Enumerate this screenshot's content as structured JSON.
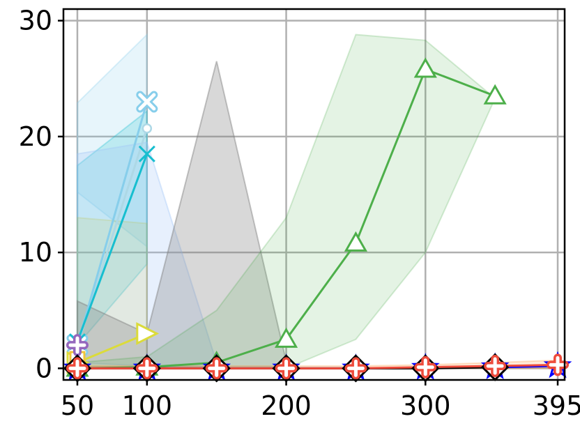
{
  "chart_data": {
    "type": "line",
    "title": "",
    "xlabel": "",
    "ylabel": "",
    "xlim": [
      40,
      400
    ],
    "ylim": [
      -1,
      31
    ],
    "grid": true,
    "legend": "none",
    "x_ticks": [
      50,
      100,
      200,
      300,
      395
    ],
    "y_ticks": [
      0,
      10,
      20,
      30
    ],
    "x_tick_labels": [
      "50",
      "100",
      "200",
      "300",
      "395"
    ],
    "y_tick_labels": [
      "0",
      "10",
      "20",
      "30"
    ],
    "bands": [
      {
        "color": "#87ceeb",
        "opacity": 0.2,
        "upper": [
          [
            50,
            22.9
          ],
          [
            100,
            28.8
          ]
        ],
        "lower": [
          [
            50,
            15.2
          ],
          [
            100,
            10.5
          ]
        ]
      },
      {
        "color": "#17becf",
        "opacity": 0.2,
        "upper": [
          [
            50,
            17.5
          ],
          [
            100,
            22.2
          ]
        ],
        "lower": [
          [
            50,
            2.0
          ],
          [
            100,
            9.0
          ]
        ]
      },
      {
        "color": "#9fc5f8",
        "opacity": 0.25,
        "upper": [
          [
            50,
            18.5
          ],
          [
            100,
            19.5
          ],
          [
            150,
            0.5
          ]
        ],
        "lower": [
          [
            50,
            0.5
          ],
          [
            100,
            0.2
          ],
          [
            150,
            0.0
          ]
        ]
      },
      {
        "color": "#bcbd22",
        "opacity": 0.12,
        "upper": [
          [
            50,
            13.0
          ],
          [
            100,
            12.5
          ]
        ],
        "lower": [
          [
            50,
            0.0
          ],
          [
            100,
            0.0
          ]
        ]
      },
      {
        "color": "#7f7f7f",
        "opacity": 0.3,
        "upper": [
          [
            50,
            5.8
          ],
          [
            100,
            3.0
          ],
          [
            150,
            26.5
          ],
          [
            200,
            0.6
          ]
        ],
        "lower": [
          [
            50,
            0.0
          ],
          [
            100,
            0.0
          ],
          [
            150,
            0.0
          ],
          [
            200,
            0.0
          ]
        ]
      },
      {
        "color": "#2ca02c",
        "opacity": 0.13,
        "upper": [
          [
            50,
            0.5
          ],
          [
            100,
            1.0
          ],
          [
            150,
            5.0
          ],
          [
            200,
            13.0
          ],
          [
            250,
            28.8
          ],
          [
            300,
            28.3
          ],
          [
            350,
            23.3
          ]
        ],
        "lower": [
          [
            50,
            0.0
          ],
          [
            100,
            0.0
          ],
          [
            150,
            0.0
          ],
          [
            200,
            0.0
          ],
          [
            250,
            2.5
          ],
          [
            300,
            10.0
          ],
          [
            350,
            23.3
          ]
        ]
      },
      {
        "color": "#ff7f0e",
        "opacity": 0.15,
        "upper": [
          [
            50,
            0.2
          ],
          [
            100,
            0.2
          ],
          [
            150,
            0.2
          ],
          [
            200,
            0.2
          ],
          [
            250,
            0.2
          ],
          [
            300,
            0.3
          ],
          [
            350,
            0.5
          ],
          [
            395,
            0.7
          ]
        ],
        "lower": [
          [
            50,
            0.0
          ],
          [
            100,
            0.0
          ],
          [
            150,
            0.0
          ],
          [
            200,
            0.0
          ],
          [
            250,
            0.0
          ],
          [
            300,
            0.0
          ],
          [
            350,
            0.0
          ],
          [
            395,
            0.0
          ]
        ]
      }
    ],
    "series": [
      {
        "color": "#add8e6",
        "marker": "circle-small",
        "x": [
          50,
          100
        ],
        "y": [
          2.0,
          20.7
        ]
      },
      {
        "color": "#87ceeb",
        "marker": "x-thick",
        "x": [
          50,
          100
        ],
        "y": [
          2.0,
          23.0
        ]
      },
      {
        "color": "#17becf",
        "marker": "x",
        "x": [
          50,
          100
        ],
        "y": [
          2.3,
          18.5
        ]
      },
      {
        "color": "#dbdb3a",
        "marker": "triangle-right",
        "x": [
          50,
          100
        ],
        "y": [
          0.5,
          3.0
        ]
      },
      {
        "color": "#f0c43a",
        "marker": "square",
        "x": [
          50
        ],
        "y": [
          0.8
        ]
      },
      {
        "color": "#9467bd",
        "marker": "plus-thick",
        "x": [
          50
        ],
        "y": [
          2.0
        ]
      },
      {
        "color": "#4daf4a",
        "marker": "triangle-up",
        "x": [
          50,
          100,
          150,
          200,
          250,
          300,
          350
        ],
        "y": [
          0.0,
          0.1,
          0.5,
          2.5,
          10.8,
          25.8,
          23.5
        ]
      },
      {
        "color": "#0000ff",
        "marker": "star",
        "x": [
          50,
          100,
          150,
          200,
          250,
          300,
          350,
          395
        ],
        "y": [
          0.0,
          0.0,
          0.0,
          0.0,
          0.0,
          0.05,
          0.1,
          0.2
        ]
      },
      {
        "color": "#000000",
        "marker": "diamond",
        "x": [
          50,
          100,
          150,
          200,
          250,
          300,
          350
        ],
        "y": [
          0.0,
          0.0,
          0.0,
          0.0,
          0.0,
          0.0,
          0.1
        ]
      },
      {
        "color": "#ee4b3b",
        "marker": "plus-thick",
        "x": [
          50,
          100,
          150,
          200,
          250,
          300,
          350,
          395
        ],
        "y": [
          0.0,
          0.0,
          0.0,
          0.0,
          0.0,
          0.1,
          0.2,
          0.3
        ]
      }
    ]
  }
}
